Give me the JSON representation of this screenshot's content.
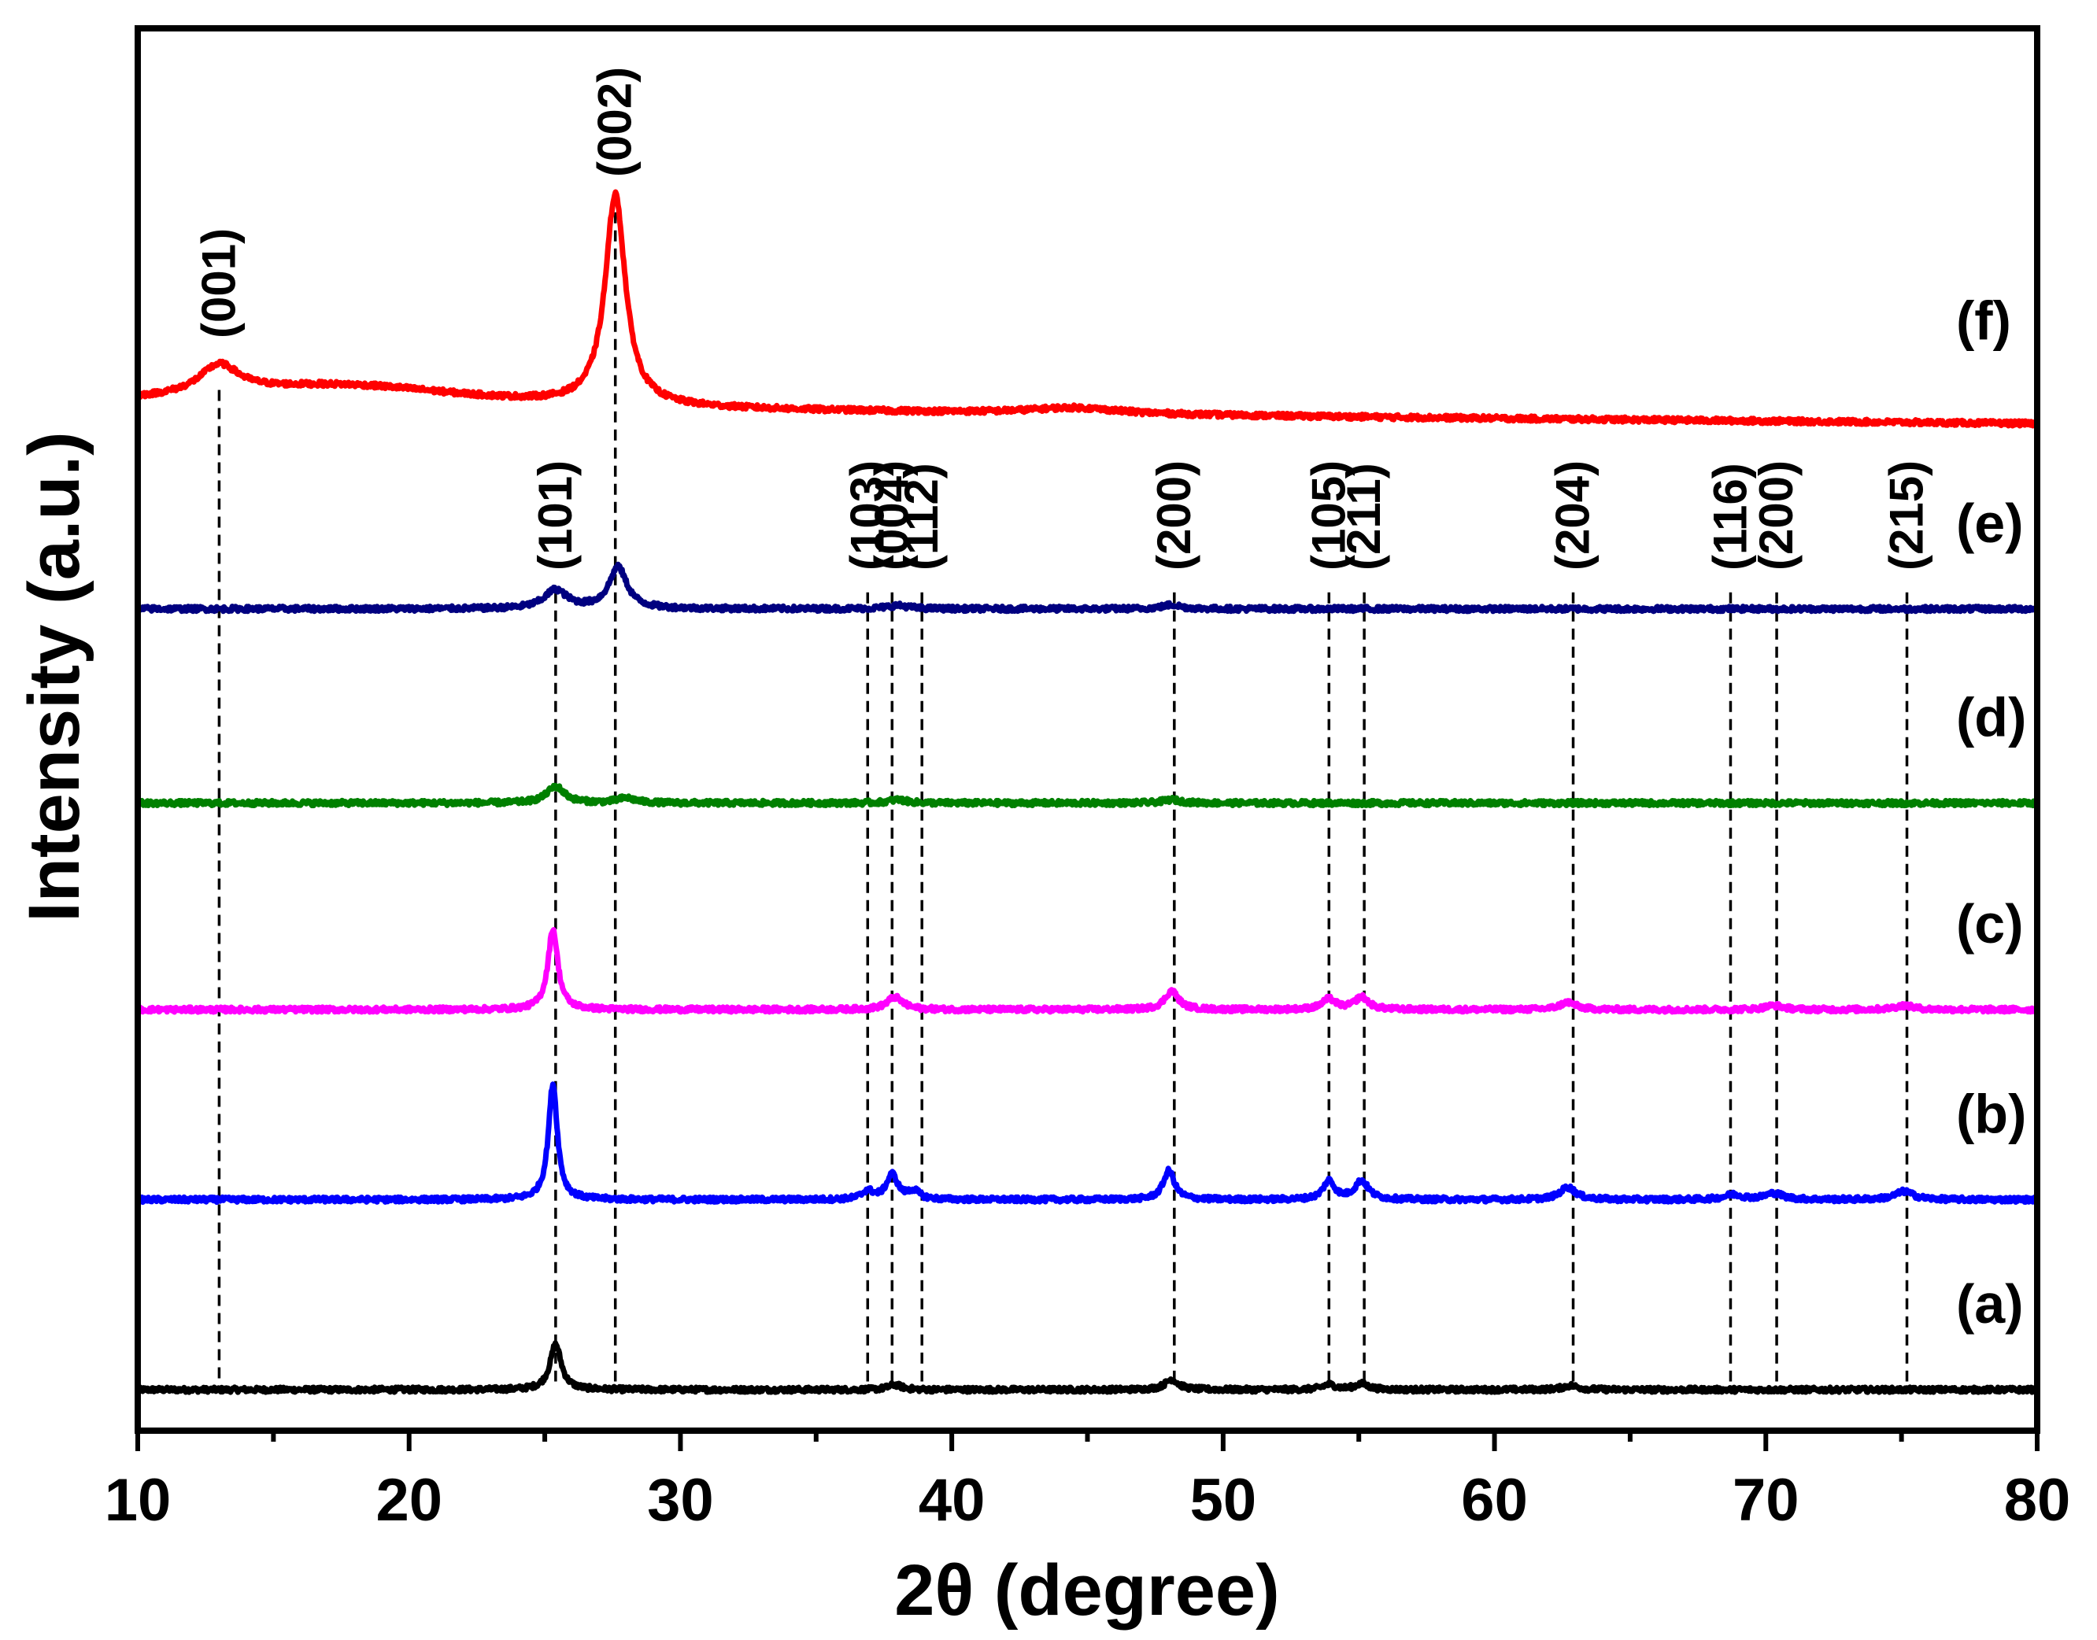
{
  "chart_data": {
    "type": "line",
    "xlabel": "2θ (degree)",
    "ylabel": "Intensity (a.u.)",
    "xlim": [
      10,
      80
    ],
    "xticks": [
      "10",
      "20",
      "30",
      "40",
      "50",
      "60",
      "70",
      "80"
    ],
    "yticks_visible": false,
    "legend_position": "right-of-curves",
    "series": [
      {
        "name": "(a)",
        "color": "#000000",
        "baseline": 0.0,
        "peaks": [
          [
            25.4,
            1.1,
            0.25
          ],
          [
            37.9,
            0.12,
            0.3
          ],
          [
            48.1,
            0.25,
            0.3
          ],
          [
            53.9,
            0.12,
            0.3
          ],
          [
            55.1,
            0.14,
            0.3
          ],
          [
            62.8,
            0.1,
            0.35
          ]
        ]
      },
      {
        "name": "(b)",
        "color": "#0000ff",
        "baseline": 4.6,
        "peaks": [
          [
            25.3,
            2.8,
            0.2
          ],
          [
            36.9,
            0.2,
            0.25
          ],
          [
            37.8,
            0.6,
            0.25
          ],
          [
            38.6,
            0.2,
            0.25
          ],
          [
            48.0,
            0.7,
            0.25
          ],
          [
            53.9,
            0.45,
            0.25
          ],
          [
            55.1,
            0.45,
            0.3
          ],
          [
            62.7,
            0.3,
            0.35
          ],
          [
            68.8,
            0.12,
            0.4
          ],
          [
            70.3,
            0.15,
            0.4
          ],
          [
            75.1,
            0.2,
            0.4
          ]
        ]
      },
      {
        "name": "(c)",
        "color": "#ff00ff",
        "baseline": 9.2,
        "peaks": [
          [
            25.3,
            1.95,
            0.22
          ],
          [
            37.9,
            0.3,
            0.35
          ],
          [
            48.1,
            0.45,
            0.3
          ],
          [
            53.9,
            0.25,
            0.3
          ],
          [
            55.1,
            0.3,
            0.3
          ],
          [
            62.7,
            0.18,
            0.35
          ],
          [
            70.3,
            0.1,
            0.4
          ],
          [
            75.1,
            0.1,
            0.4
          ]
        ]
      },
      {
        "name": "(d)",
        "color": "#008000",
        "baseline": 14.2,
        "peaks": [
          [
            25.4,
            0.4,
            0.4
          ],
          [
            28.0,
            0.12,
            0.4
          ],
          [
            38.0,
            0.08,
            0.4
          ],
          [
            48.1,
            0.08,
            0.4
          ]
        ]
      },
      {
        "name": "(e)",
        "color": "#000080",
        "baseline": 18.9,
        "peaks": [
          [
            25.4,
            0.45,
            0.5
          ],
          [
            27.7,
            1.0,
            0.4
          ],
          [
            38.0,
            0.08,
            0.5
          ],
          [
            48.1,
            0.1,
            0.4
          ]
        ]
      },
      {
        "name": "(f)",
        "color": "#ff0000",
        "baseline": 23.8,
        "peaks": [
          [
            13.0,
            0.7,
            0.9
          ],
          [
            17.5,
            0.55,
            6.0
          ],
          [
            27.6,
            5.1,
            0.45
          ],
          [
            44.5,
            0.15,
            2.0
          ]
        ],
        "slope": -0.006
      }
    ],
    "peak_annotations": [
      {
        "label": "(001)",
        "x": 13.0,
        "group": "f"
      },
      {
        "label": "(002)",
        "x": 27.6,
        "group": "f"
      },
      {
        "label": "(101)",
        "x": 25.4,
        "group": "e"
      },
      {
        "label": "(103)",
        "x": 36.9,
        "group": "e"
      },
      {
        "label": "(004)",
        "x": 37.8,
        "group": "e"
      },
      {
        "label": "(112)",
        "x": 38.9,
        "group": "e"
      },
      {
        "label": "(200)",
        "x": 48.2,
        "group": "e"
      },
      {
        "label": "(105)",
        "x": 53.9,
        "group": "e"
      },
      {
        "label": "(211)",
        "x": 55.2,
        "group": "e"
      },
      {
        "label": "(204)",
        "x": 62.9,
        "group": "e"
      },
      {
        "label": "(116)",
        "x": 68.7,
        "group": "e"
      },
      {
        "label": "(200)",
        "x": 70.4,
        "group": "e"
      },
      {
        "label": "(215)",
        "x": 75.2,
        "group": "e"
      }
    ],
    "reference_lines_x": [
      13.0,
      25.4,
      27.6,
      36.9,
      37.8,
      38.9,
      48.2,
      53.9,
      55.2,
      62.9,
      68.7,
      70.4,
      75.2
    ]
  }
}
